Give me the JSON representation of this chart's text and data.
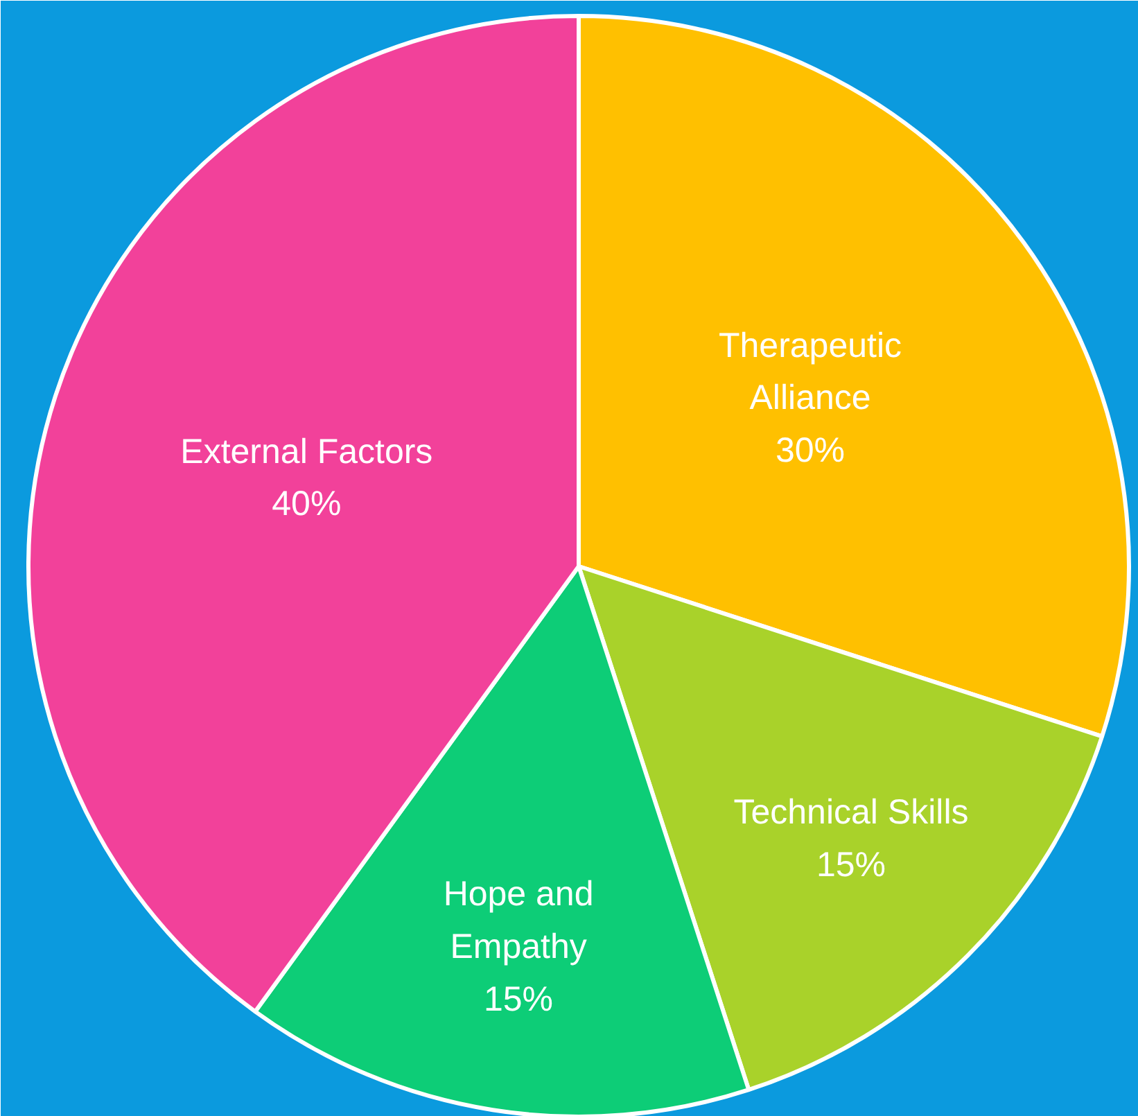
{
  "chart_data": {
    "type": "pie",
    "categories": [
      "Therapeutic\nAlliance",
      "Technical Skills",
      "Hope and\nEmpathy",
      "External Factors"
    ],
    "values": [
      30,
      15,
      15,
      40
    ],
    "colors": [
      "#ffc000",
      "#a9d22a",
      "#0dcd77",
      "#f2419a"
    ],
    "value_labels": [
      "30%",
      "15%",
      "15%",
      "40%"
    ]
  }
}
